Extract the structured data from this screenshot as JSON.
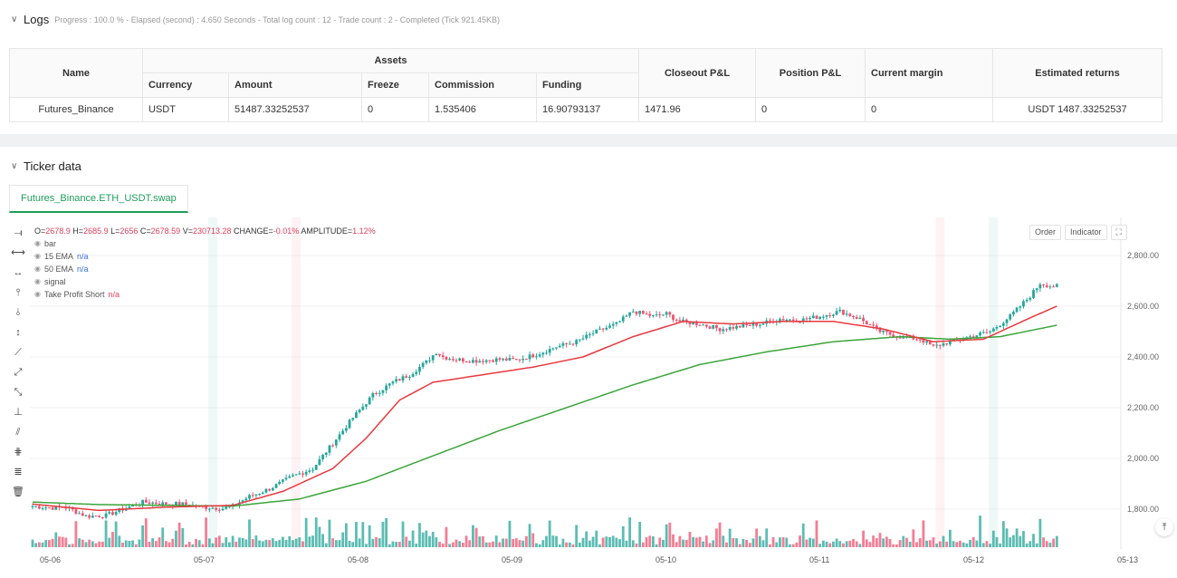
{
  "logs": {
    "title": "Logs",
    "meta": "Progress : 100.0 % - Elapsed (second) : 4.650  Seconds - Total log count : 12 - Trade count : 2 - Completed (Tick 921.45KB)",
    "headers": {
      "name": "Name",
      "assets": "Assets",
      "currency": "Currency",
      "amount": "Amount",
      "freeze": "Freeze",
      "commission": "Commission",
      "funding": "Funding",
      "closeout": "Closeout P&L",
      "position": "Position P&L",
      "margin": "Current margin",
      "returns": "Estimated returns"
    },
    "row": {
      "name": "Futures_Binance",
      "currency": "USDT",
      "amount": "51487.33252537",
      "freeze": "0",
      "commission": "1.535406",
      "funding": "16.90793137",
      "closeout": "1471.96",
      "position": "0",
      "margin": "0",
      "returns": "USDT 1487.33252537"
    }
  },
  "ticker": {
    "title": "Ticker data",
    "tab": "Futures_Binance.ETH_USDT.swap",
    "ohlc": {
      "o_label": "O=",
      "o": "2678.9",
      "h_label": " H=",
      "h": "2685.9",
      "l_label": " L=",
      "l": "2656",
      "c_label": " C=",
      "c": "2678.59",
      "v_label": " V=",
      "v": "230713.28",
      "ch_label": " CHANGE=",
      "ch": "-0.01%",
      "amp_label": " AMPLITUDE=",
      "amp": "1.12%"
    },
    "legend": [
      {
        "label": "bar",
        "value": ""
      },
      {
        "label": "15 EMA",
        "value": "n/a"
      },
      {
        "label": "50 EMA",
        "value": "n/a"
      },
      {
        "label": "signal",
        "value": ""
      },
      {
        "label": "Take Profit Short",
        "value": "n/a"
      }
    ],
    "buttons": {
      "order": "Order",
      "indicator": "Indicator",
      "expand": "⛶"
    }
  },
  "colors": {
    "up": "#26a69a",
    "down": "#ef5370",
    "ema15": "#e8393f",
    "ema50": "#3aa53a",
    "accent": "#1f9e5b"
  },
  "chart_data": {
    "type": "candlestick",
    "y_ticks": [
      "2,800.00",
      "2,600.00",
      "2,400.00",
      "2,200.00",
      "2,000.00",
      "1,800.00"
    ],
    "y_tick_values": [
      2800,
      2600,
      2400,
      2200,
      2000,
      1800
    ],
    "ylim": [
      1660,
      2880
    ],
    "x_ticks": [
      "05-06",
      "05-07",
      "05-08",
      "05-09",
      "05-10",
      "05-11",
      "05-12",
      "05-13"
    ],
    "anchors": [
      [
        0,
        1812
      ],
      [
        6,
        1805
      ],
      [
        10,
        1808
      ],
      [
        16,
        1772
      ],
      [
        22,
        1775
      ],
      [
        27,
        1800
      ],
      [
        33,
        1828
      ],
      [
        39,
        1822
      ],
      [
        45,
        1820
      ],
      [
        51,
        1808
      ],
      [
        57,
        1803
      ],
      [
        60,
        1812
      ],
      [
        65,
        1850
      ],
      [
        71,
        1880
      ],
      [
        78,
        1930
      ],
      [
        84,
        1960
      ],
      [
        90,
        2060
      ],
      [
        96,
        2160
      ],
      [
        102,
        2250
      ],
      [
        108,
        2300
      ],
      [
        113,
        2330
      ],
      [
        118,
        2380
      ],
      [
        121,
        2420
      ],
      [
        123,
        2400
      ],
      [
        127,
        2390
      ],
      [
        133,
        2385
      ],
      [
        139,
        2390
      ],
      [
        145,
        2388
      ],
      [
        151,
        2410
      ],
      [
        157,
        2440
      ],
      [
        163,
        2460
      ],
      [
        169,
        2500
      ],
      [
        175,
        2530
      ],
      [
        180,
        2580
      ],
      [
        186,
        2560
      ],
      [
        190,
        2570
      ],
      [
        194,
        2540
      ],
      [
        200,
        2530
      ],
      [
        206,
        2510
      ],
      [
        212,
        2520
      ],
      [
        218,
        2530
      ],
      [
        224,
        2550
      ],
      [
        230,
        2545
      ],
      [
        236,
        2560
      ],
      [
        242,
        2580
      ],
      [
        248,
        2550
      ],
      [
        254,
        2500
      ],
      [
        260,
        2480
      ],
      [
        266,
        2470
      ],
      [
        270,
        2440
      ],
      [
        275,
        2460
      ],
      [
        281,
        2480
      ],
      [
        287,
        2500
      ],
      [
        293,
        2560
      ],
      [
        299,
        2640
      ],
      [
        302,
        2690
      ],
      [
        305,
        2680
      ],
      [
        307,
        2678
      ]
    ],
    "ema15": [
      [
        0,
        1820
      ],
      [
        20,
        1795
      ],
      [
        40,
        1808
      ],
      [
        60,
        1815
      ],
      [
        75,
        1870
      ],
      [
        90,
        1960
      ],
      [
        100,
        2080
      ],
      [
        110,
        2230
      ],
      [
        120,
        2300
      ],
      [
        135,
        2330
      ],
      [
        150,
        2360
      ],
      [
        165,
        2400
      ],
      [
        180,
        2480
      ],
      [
        195,
        2540
      ],
      [
        210,
        2530
      ],
      [
        225,
        2540
      ],
      [
        240,
        2540
      ],
      [
        255,
        2510
      ],
      [
        270,
        2460
      ],
      [
        285,
        2470
      ],
      [
        300,
        2560
      ],
      [
        307,
        2600
      ]
    ],
    "ema50": [
      [
        0,
        1828
      ],
      [
        20,
        1818
      ],
      [
        40,
        1815
      ],
      [
        60,
        1812
      ],
      [
        80,
        1840
      ],
      [
        100,
        1910
      ],
      [
        120,
        2010
      ],
      [
        140,
        2110
      ],
      [
        160,
        2200
      ],
      [
        180,
        2290
      ],
      [
        200,
        2370
      ],
      [
        220,
        2420
      ],
      [
        240,
        2460
      ],
      [
        260,
        2480
      ],
      [
        275,
        2470
      ],
      [
        290,
        2480
      ],
      [
        307,
        2525
      ]
    ],
    "signal_bands": [
      [
        54,
        "green"
      ],
      [
        79,
        "red"
      ],
      [
        272,
        "red"
      ],
      [
        288,
        "green"
      ]
    ]
  }
}
